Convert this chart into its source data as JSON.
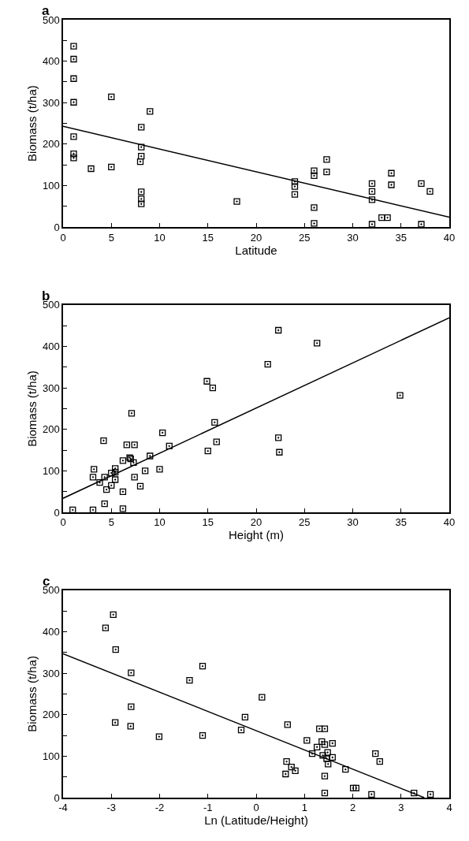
{
  "chart_data": [
    {
      "type": "scatter",
      "xlabel": "Latitude",
      "ylabel": "Biomass (t/ha)",
      "annotations": [
        "a"
      ],
      "xlim": [
        0,
        40
      ],
      "ylim": [
        0,
        500
      ],
      "xticks": [
        0,
        5,
        10,
        15,
        20,
        25,
        30,
        35,
        40
      ],
      "yticks": [
        0,
        {
          "value": 50,
          "label": null
        },
        100,
        {
          "value": 150,
          "label": null
        },
        200,
        {
          "value": 250,
          "label": null
        },
        300,
        {
          "value": 350,
          "label": null
        },
        400,
        {
          "value": 450,
          "label": null
        },
        500
      ],
      "series": [
        {
          "type": "scatter",
          "marker": "square",
          "color": "#000000",
          "x": [
            1.1,
            1.1,
            1.1,
            1.1,
            1.1,
            1.1,
            1.1,
            2.9,
            5.0,
            5.0,
            8.1,
            8.1,
            8.1,
            8.0,
            8.1,
            8.1,
            8.1,
            9.0,
            18.0,
            24.0,
            24.0,
            24.0,
            26.0,
            26.0,
            26.0,
            26.0,
            27.3,
            27.3,
            32.0,
            32.0,
            32.0,
            32.0,
            33.0,
            33.6,
            34.0,
            34.0,
            37.1,
            37.1,
            38.0
          ],
          "values": [
            436,
            405,
            358,
            301,
            218,
            177,
            167,
            141,
            314,
            145,
            241,
            193,
            171,
            158,
            85,
            68,
            56,
            279,
            62,
            110,
            98,
            79,
            136,
            124,
            47,
            9,
            163,
            133,
            105,
            86,
            66,
            7,
            23,
            23,
            130,
            102,
            105,
            7,
            86
          ]
        },
        {
          "type": "line",
          "color": "#000000",
          "line_style": "solid",
          "x": [
            0,
            40
          ],
          "values": [
            243,
            24
          ]
        }
      ]
    },
    {
      "type": "scatter",
      "xlabel": "Height (m)",
      "ylabel": "Biomass (t/ha)",
      "annotations": [
        "b"
      ],
      "xlim": [
        0,
        40
      ],
      "ylim": [
        0,
        500
      ],
      "xticks": [
        0,
        5,
        10,
        15,
        20,
        25,
        30,
        35,
        40
      ],
      "yticks": [
        0,
        {
          "value": 50,
          "label": null
        },
        100,
        {
          "value": 150,
          "label": null
        },
        200,
        {
          "value": 250,
          "label": null
        },
        300,
        {
          "value": 350,
          "label": null
        },
        400,
        {
          "value": 450,
          "label": null
        },
        500
      ],
      "series": [
        {
          "type": "scatter",
          "marker": "square",
          "color": "#000000",
          "x": [
            1.0,
            3.1,
            3.1,
            3.2,
            4.2,
            4.3,
            3.8,
            4.3,
            4.5,
            5.0,
            5.0,
            5.4,
            5.4,
            5.4,
            6.2,
            6.2,
            6.2,
            6.6,
            7.1,
            6.9,
            7.0,
            7.3,
            7.4,
            7.4,
            8.0,
            8.5,
            9.0,
            10.0,
            10.3,
            11.0,
            14.9,
            15.5,
            15.0,
            15.7,
            15.9,
            21.2,
            22.3,
            22.3,
            22.4,
            26.3,
            34.9
          ],
          "values": [
            6,
            6,
            85,
            104,
            173,
            21,
            72,
            85,
            55,
            65,
            95,
            106,
            97,
            79,
            125,
            50,
            9,
            163,
            239,
            132,
            129,
            120,
            163,
            85,
            63,
            100,
            136,
            104,
            192,
            160,
            316,
            300,
            148,
            217,
            170,
            357,
            439,
            180,
            145,
            408,
            282
          ]
        },
        {
          "type": "line",
          "color": "#000000",
          "line_style": "solid",
          "x": [
            0,
            40
          ],
          "values": [
            34,
            469
          ]
        }
      ]
    },
    {
      "type": "scatter",
      "xlabel": "Ln (Latitude/Height)",
      "ylabel": "Biomass (t/ha)",
      "annotations": [
        "c"
      ],
      "xlim": [
        -4,
        4
      ],
      "ylim": [
        0,
        500
      ],
      "xticks": [
        -4,
        -3,
        -2,
        -1,
        0,
        1,
        2,
        3,
        4
      ],
      "yticks": [
        0,
        {
          "value": 50,
          "label": null
        },
        100,
        {
          "value": 150,
          "label": null
        },
        200,
        {
          "value": 250,
          "label": null
        },
        300,
        {
          "value": 350,
          "label": null
        },
        400,
        {
          "value": 450,
          "label": null
        },
        500
      ],
      "series": [
        {
          "type": "scatter",
          "marker": "square",
          "color": "#000000",
          "x": [
            -2.96,
            -3.12,
            -2.91,
            -2.59,
            -2.59,
            -2.92,
            -2.6,
            -2.01,
            -1.38,
            -1.11,
            -1.11,
            -0.31,
            -0.23,
            0.12,
            0.65,
            0.63,
            0.73,
            0.81,
            0.61,
            1.05,
            1.16,
            1.26,
            1.31,
            1.42,
            1.36,
            1.42,
            1.58,
            1.38,
            1.48,
            1.46,
            1.58,
            1.49,
            1.42,
            1.42,
            1.85,
            2.01,
            2.07,
            2.39,
            2.47,
            2.56,
            3.27,
            3.61
          ],
          "values": [
            441,
            409,
            357,
            301,
            219,
            181,
            172,
            147,
            283,
            317,
            150,
            163,
            194,
            242,
            176,
            87,
            74,
            65,
            57,
            138,
            106,
            122,
            166,
            166,
            135,
            128,
            131,
            102,
            109,
            94,
            97,
            81,
            52,
            11,
            68,
            23,
            23,
            8,
            106,
            87,
            11,
            8
          ]
        },
        {
          "type": "line",
          "color": "#000000",
          "line_style": "solid",
          "x": [
            -4,
            3.48
          ],
          "values": [
            347,
            0
          ]
        }
      ]
    }
  ]
}
